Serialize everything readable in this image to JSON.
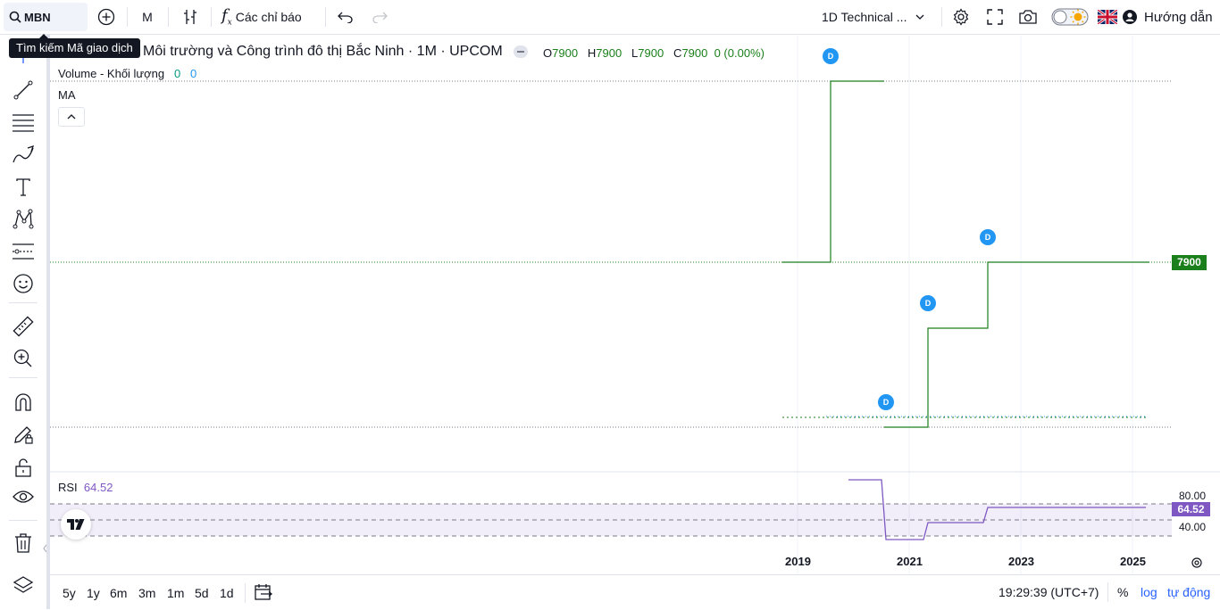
{
  "topbar": {
    "symbol": "MBN",
    "interval": "M",
    "indicators_label": "Các chỉ báo",
    "layout_name": "1D Technical ...",
    "help_label": "Hướng dẫn",
    "search_tooltip": "Tìm kiếm Mã giao dịch"
  },
  "legend": {
    "title": "Môi trường và Công trình đô thị Bắc Ninh · 1M · UPCOM",
    "o_label": "O",
    "o_value": "7900",
    "h_label": "H",
    "h_value": "7900",
    "l_label": "L",
    "l_value": "7900",
    "c_label": "C",
    "c_value": "7900",
    "change": "0 (0.00%)",
    "volume_label": "Volume - Khối lượng",
    "volume_v1": "0",
    "volume_v2": "0",
    "ma_label": "MA"
  },
  "price_axis": {
    "last_price": "7900"
  },
  "dividend_marker": "D",
  "rsi": {
    "label": "RSI",
    "value": "64.52",
    "upper": "80.00",
    "lower": "40.00"
  },
  "time_axis": [
    "2019",
    "2021",
    "2023",
    "2025"
  ],
  "bottombar": {
    "ranges": [
      "5y",
      "1y",
      "6m",
      "3m",
      "1m",
      "5d",
      "1d"
    ],
    "clock": "19:29:39 (UTC+7)",
    "percent": "%",
    "log": "log",
    "auto": "tự động"
  },
  "colors": {
    "up": "#1b7f1b",
    "rsi": "#7e57c2",
    "marker": "#2196f3",
    "link": "#2962ff"
  }
}
